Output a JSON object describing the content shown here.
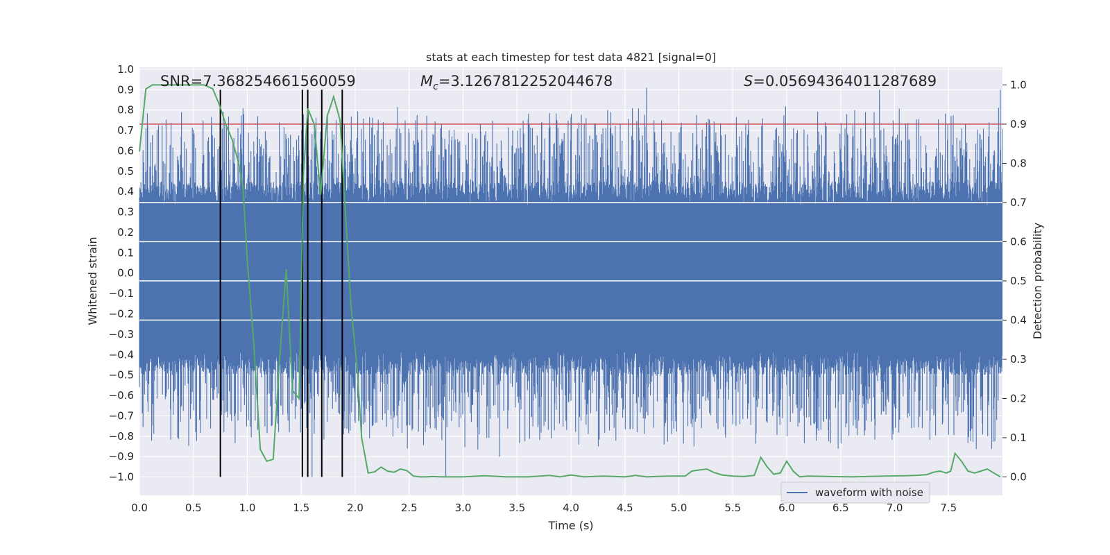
{
  "chart_data": {
    "type": "line",
    "title": "stats at each timestep for test data 4821 [signal=0]",
    "xlabel": "Time (s)",
    "ylabel": "Whitened strain",
    "y2label": "Detection probability",
    "xlim": [
      0.0,
      8.0
    ],
    "ylim": [
      -1.09,
      1.01
    ],
    "y2lim": [
      -0.047,
      1.045
    ],
    "x_ticks": [
      "0.0",
      "0.5",
      "1.0",
      "1.5",
      "2.0",
      "2.5",
      "3.0",
      "3.5",
      "4.0",
      "4.5",
      "5.0",
      "5.5",
      "6.0",
      "6.5",
      "7.0",
      "7.5"
    ],
    "y_ticks": [
      "1.0",
      "0.9",
      "0.8",
      "0.7",
      "0.6",
      "0.5",
      "0.4",
      "0.3",
      "0.2",
      "0.1",
      "0.0",
      "−0.1",
      "−0.2",
      "−0.3",
      "−0.4",
      "−0.5",
      "−0.6",
      "−0.7",
      "−0.8",
      "−0.9",
      "−1.0"
    ],
    "y2_ticks": [
      "1.0",
      "0.9",
      "0.8",
      "0.7",
      "0.6",
      "0.5",
      "0.4",
      "0.3",
      "0.2",
      "0.1",
      "0.0"
    ],
    "annotations": {
      "snr": "SNR=7.368254661560059",
      "mc_symbol": "M",
      "mc_sub": "c",
      "mc_value": "=3.1267812252044678",
      "s_symbol": "S",
      "s_value": "=0.05694364011287689"
    },
    "threshold": {
      "y2": 0.9,
      "color": "#c44e52"
    },
    "white_reference_lines_y2": [
      0.7,
      0.6,
      0.5,
      0.4
    ],
    "vertical_markers_x": [
      0.75,
      1.51,
      1.56,
      1.69,
      1.88
    ],
    "marker_range_y": [
      -1.0,
      0.9
    ],
    "series": [
      {
        "name": "waveform with noise",
        "color": "#4c72b0",
        "kind": "noise",
        "core_amplitude": 0.33,
        "tail_amplitude": 0.62,
        "spikes": [
          {
            "x": 0.39,
            "y": 0.79
          },
          {
            "x": 0.52,
            "y": -0.78
          },
          {
            "x": 0.59,
            "y": 0.75
          },
          {
            "x": 0.79,
            "y": 0.74
          },
          {
            "x": 1.56,
            "y": 0.87
          },
          {
            "x": 1.6,
            "y": -1.0
          },
          {
            "x": 2.56,
            "y": 0.75
          },
          {
            "x": 2.65,
            "y": -0.78
          },
          {
            "x": 2.84,
            "y": -1.0
          },
          {
            "x": 3.34,
            "y": -0.9
          },
          {
            "x": 3.73,
            "y": 0.74
          },
          {
            "x": 4.7,
            "y": 0.91
          },
          {
            "x": 5.14,
            "y": -0.85
          },
          {
            "x": 6.73,
            "y": 0.79
          },
          {
            "x": 6.86,
            "y": 0.9
          },
          {
            "x": 7.98,
            "y": 0.9
          }
        ]
      },
      {
        "name": "detection probability",
        "color": "#55a868",
        "axis": "right",
        "x": [
          0.0,
          0.06,
          0.12,
          0.18,
          0.3,
          0.45,
          0.6,
          0.68,
          0.74,
          0.8,
          0.86,
          0.92,
          0.96,
          1.0,
          1.06,
          1.12,
          1.18,
          1.24,
          1.3,
          1.36,
          1.42,
          1.48,
          1.52,
          1.56,
          1.62,
          1.68,
          1.74,
          1.8,
          1.86,
          1.9,
          1.96,
          2.02,
          2.06,
          2.12,
          2.18,
          2.24,
          2.3,
          2.36,
          2.42,
          2.48,
          2.54,
          2.6,
          2.66,
          2.72,
          2.8,
          3.0,
          3.2,
          3.4,
          3.6,
          3.8,
          3.9,
          4.0,
          4.12,
          4.3,
          4.5,
          4.6,
          4.7,
          4.9,
          5.06,
          5.12,
          5.2,
          5.26,
          5.32,
          5.4,
          5.5,
          5.6,
          5.7,
          5.76,
          5.82,
          5.88,
          5.94,
          6.0,
          6.06,
          6.12,
          6.2,
          6.4,
          6.6,
          6.9,
          7.1,
          7.2,
          7.3,
          7.36,
          7.42,
          7.48,
          7.52,
          7.56,
          7.62,
          7.68,
          7.74,
          7.8,
          7.86,
          7.92,
          7.98
        ],
        "y": [
          0.83,
          0.99,
          1.0,
          1.0,
          1.0,
          1.0,
          1.0,
          0.99,
          0.95,
          0.9,
          0.86,
          0.8,
          0.74,
          0.55,
          0.34,
          0.07,
          0.04,
          0.045,
          0.3,
          0.53,
          0.22,
          0.2,
          0.77,
          0.94,
          0.9,
          0.72,
          0.92,
          0.97,
          0.91,
          0.72,
          0.44,
          0.27,
          0.1,
          0.01,
          0.013,
          0.025,
          0.015,
          0.012,
          0.02,
          0.016,
          0.002,
          0.0,
          0.0,
          0.001,
          0.0,
          0.0,
          0.003,
          0.0,
          0.0,
          0.004,
          0.0,
          0.005,
          0.0,
          0.002,
          0.0,
          0.004,
          0.0,
          0.002,
          0.002,
          0.015,
          0.018,
          0.02,
          0.012,
          0.005,
          0.002,
          0.001,
          0.004,
          0.05,
          0.025,
          0.007,
          0.01,
          0.04,
          0.015,
          0.0,
          0.002,
          0.001,
          0.0,
          0.002,
          0.003,
          0.004,
          0.006,
          0.012,
          0.015,
          0.01,
          0.015,
          0.06,
          0.04,
          0.015,
          0.01,
          0.015,
          0.02,
          0.01,
          0.0
        ]
      }
    ],
    "legend": {
      "location": "bottom-right",
      "label": "waveform with noise"
    }
  }
}
